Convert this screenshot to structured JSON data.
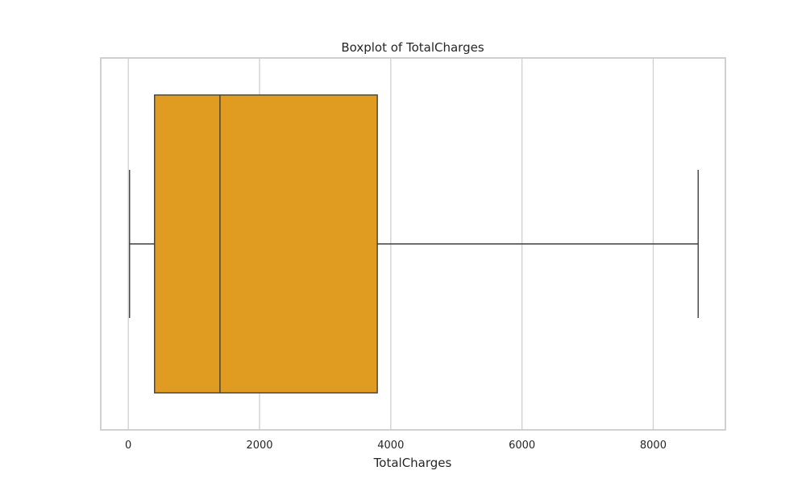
{
  "chart_data": {
    "type": "boxplot",
    "title": "Boxplot of TotalCharges",
    "xlabel": "TotalCharges",
    "ylabel": "",
    "orientation": "horizontal",
    "xlim": [
      -420,
      9100
    ],
    "xticks": [
      0,
      2000,
      4000,
      6000,
      8000
    ],
    "xtick_labels": [
      "0",
      "2000",
      "4000",
      "6000",
      "8000"
    ],
    "grid": true,
    "box_color": "#e09c20",
    "line_color": "#3f3f3f",
    "grid_color": "#d0d0d0",
    "frame_color": "#cccccc",
    "stats": {
      "whisker_low": 19,
      "q1": 400,
      "median": 1397,
      "q3": 3795,
      "whisker_high": 8685
    }
  }
}
